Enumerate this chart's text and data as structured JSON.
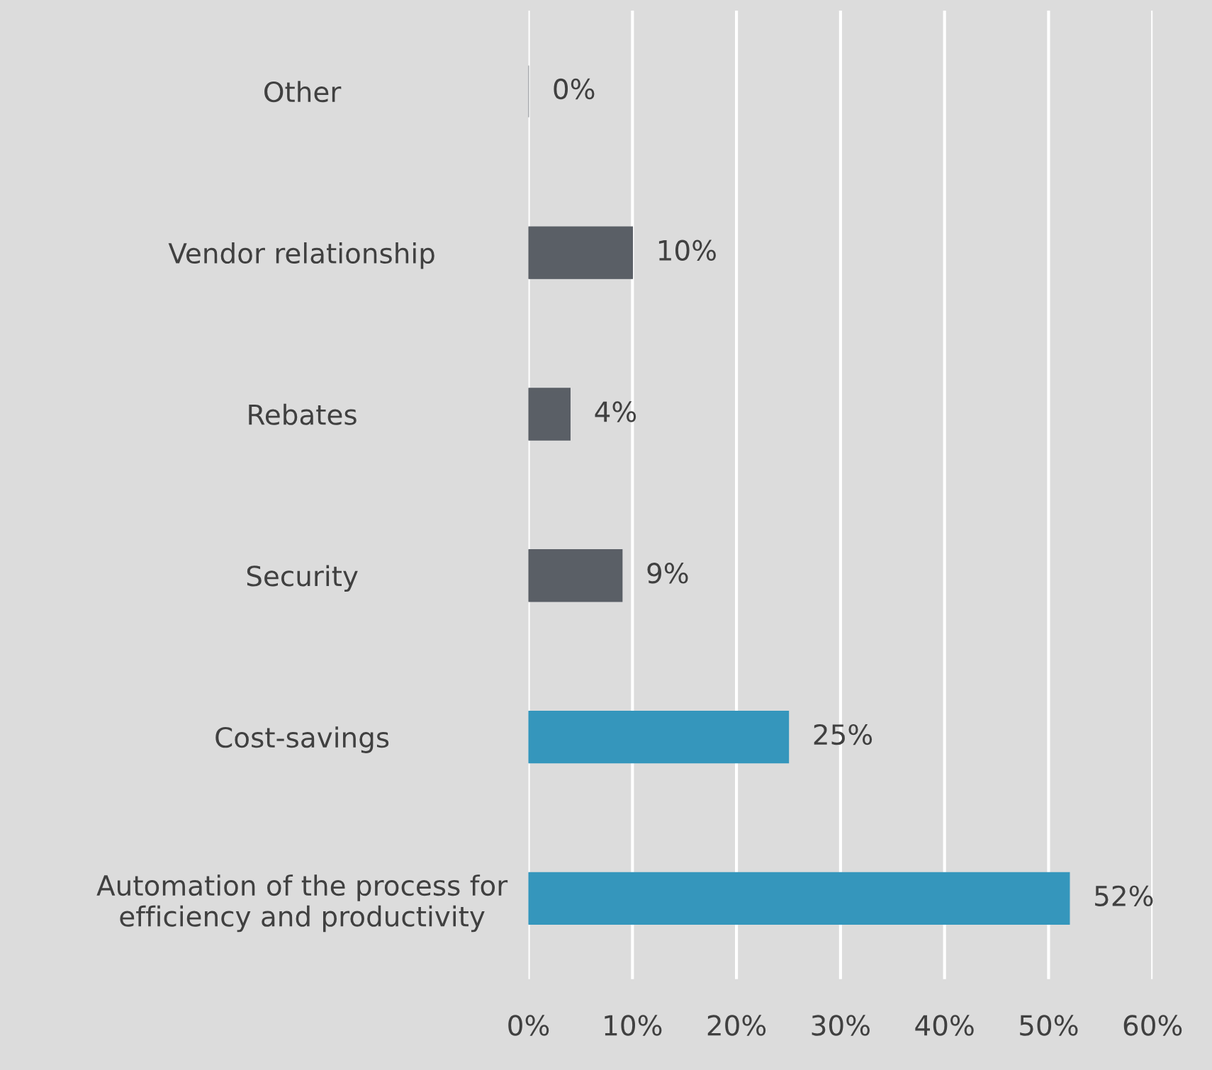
{
  "chart_data": {
    "type": "bar",
    "orientation": "horizontal",
    "categories": [
      "Other",
      "Vendor relationship",
      "Rebates",
      "Security",
      "Cost-savings",
      "Automation of the process for\nefficiency and productivity"
    ],
    "values": [
      0,
      10,
      4,
      9,
      25,
      52
    ],
    "colors": [
      "#5a5f66",
      "#5a5f66",
      "#5a5f66",
      "#5a5f66",
      "#3596bc",
      "#3596bc"
    ],
    "value_labels": [
      "0%",
      "10%",
      "4%",
      "9%",
      "25%",
      "52%"
    ],
    "xlim": [
      0,
      60
    ],
    "xticks": [
      {
        "value": 0,
        "label": "0%"
      },
      {
        "value": 10,
        "label": "10%"
      },
      {
        "value": 20,
        "label": "20%"
      },
      {
        "value": 30,
        "label": "30%"
      },
      {
        "value": 40,
        "label": "40%"
      },
      {
        "value": 50,
        "label": "50%"
      },
      {
        "value": 60,
        "label": "60%"
      }
    ],
    "grid": "x"
  }
}
